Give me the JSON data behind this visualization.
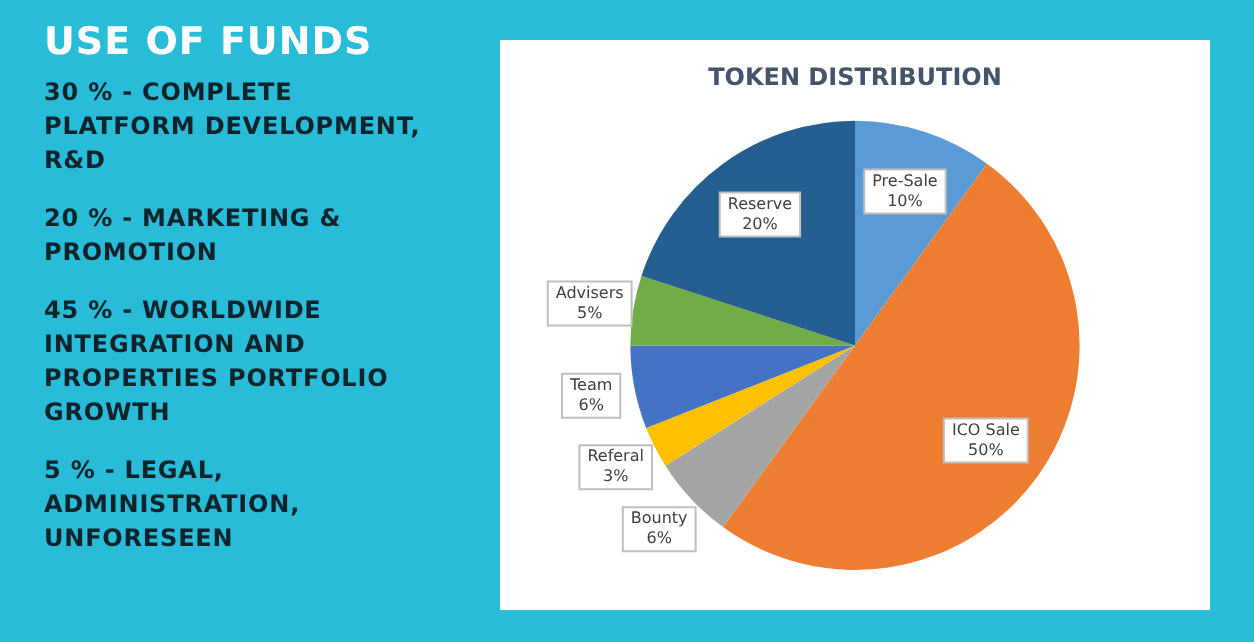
{
  "chart_data": [
    {
      "type": "other",
      "title": "USE OF FUNDS",
      "annotations": [
        "30 % - COMPLETE PLATFORM DEVELOPMENT, R&D",
        "20 % - MARKETING & PROMOTION",
        "45 % - WORLDWIDE INTEGRATION AND PROPERTIES PORTFOLIO GROWTH",
        "5 % - LEGAL, ADMINISTRATION, UNFORESEEN"
      ]
    },
    {
      "type": "pie",
      "title": "TOKEN DISTRIBUTION",
      "categories": [
        "Pre-Sale",
        "ICO Sale",
        "Bounty",
        "Referal",
        "Team",
        "Advisers",
        "Reserve"
      ],
      "values": [
        10,
        50,
        6,
        3,
        6,
        5,
        20
      ],
      "colors": [
        "#5b9bd5",
        "#ed7d31",
        "#a5a5a5",
        "#ffc000",
        "#4472c4",
        "#70ad47",
        "#255e91"
      ],
      "value_labels": [
        "10%",
        "50%",
        "6%",
        "3%",
        "6%",
        "5%",
        "20%"
      ],
      "legend": false
    }
  ]
}
